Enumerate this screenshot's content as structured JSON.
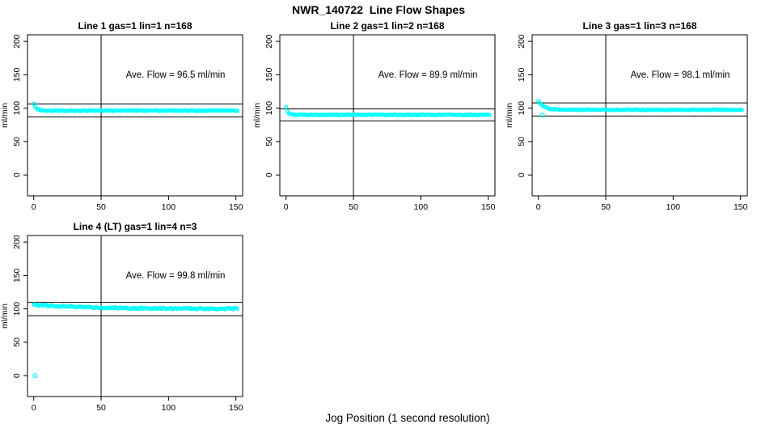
{
  "header": {
    "title": "NWR_140722  Line Flow Shapes"
  },
  "footer": {
    "xlabel": "Jog Position (1 second resolution)"
  },
  "colors": {
    "points": "#00ffff",
    "axis": "#000000",
    "background": "#ffffff",
    "text": "#000000"
  },
  "axes": {
    "ylabel": "ml/min",
    "xticks": [
      0,
      50,
      100,
      150
    ],
    "yticks": [
      0,
      50,
      100,
      150,
      200
    ],
    "vline_x": 50,
    "xlim": [
      -5,
      155
    ],
    "ylim": [
      -31,
      210
    ]
  },
  "chart_data": [
    {
      "type": "scatter",
      "panel": 1,
      "title": "Line 1 gas=1 lin=1 n=168",
      "annotation": "Ave. Flow =  96.5  ml/min",
      "ave_flow_ml_min": 96.5,
      "hlines": [
        106.2,
        86.9
      ],
      "model": {
        "x_start": 0,
        "x_end": 151,
        "start": 107,
        "settle": 96.3,
        "tau": 1.8,
        "noise": 0.6,
        "seed": 1
      },
      "outliers": []
    },
    {
      "type": "scatter",
      "panel": 2,
      "title": "Line 2 gas=1 lin=2 n=168",
      "annotation": "Ave. Flow =  89.9  ml/min",
      "ave_flow_ml_min": 89.9,
      "hlines": [
        98.9,
        80.9
      ],
      "model": {
        "x_start": 0,
        "x_end": 151,
        "start": 101,
        "settle": 90.0,
        "tau": 1.5,
        "noise": 0.6,
        "seed": 2
      },
      "outliers": []
    },
    {
      "type": "scatter",
      "panel": 3,
      "title": "Line 3 gas=1 lin=3 n=168",
      "annotation": "Ave. Flow =  98.1  ml/min",
      "ave_flow_ml_min": 98.1,
      "hlines": [
        107.9,
        88.3
      ],
      "model": {
        "x_start": 0,
        "x_end": 151,
        "start": 111,
        "settle": 97.5,
        "tau": 4.0,
        "noise": 0.6,
        "seed": 3
      },
      "outliers": [
        [
          3,
          89.5
        ]
      ]
    },
    {
      "type": "scatter",
      "panel": 4,
      "title": "Line 4 (LT) gas=1 lin=4 n=3",
      "annotation": "Ave. Flow =  99.8  ml/min",
      "ave_flow_ml_min": 99.8,
      "hlines": [
        109.8,
        89.8
      ],
      "model": {
        "x_start": 0,
        "x_end": 151,
        "start": 106,
        "settle": 100.0,
        "tau": 45,
        "noise": 1.1,
        "seed": 4
      },
      "outliers": [
        [
          1,
          0
        ]
      ]
    }
  ]
}
